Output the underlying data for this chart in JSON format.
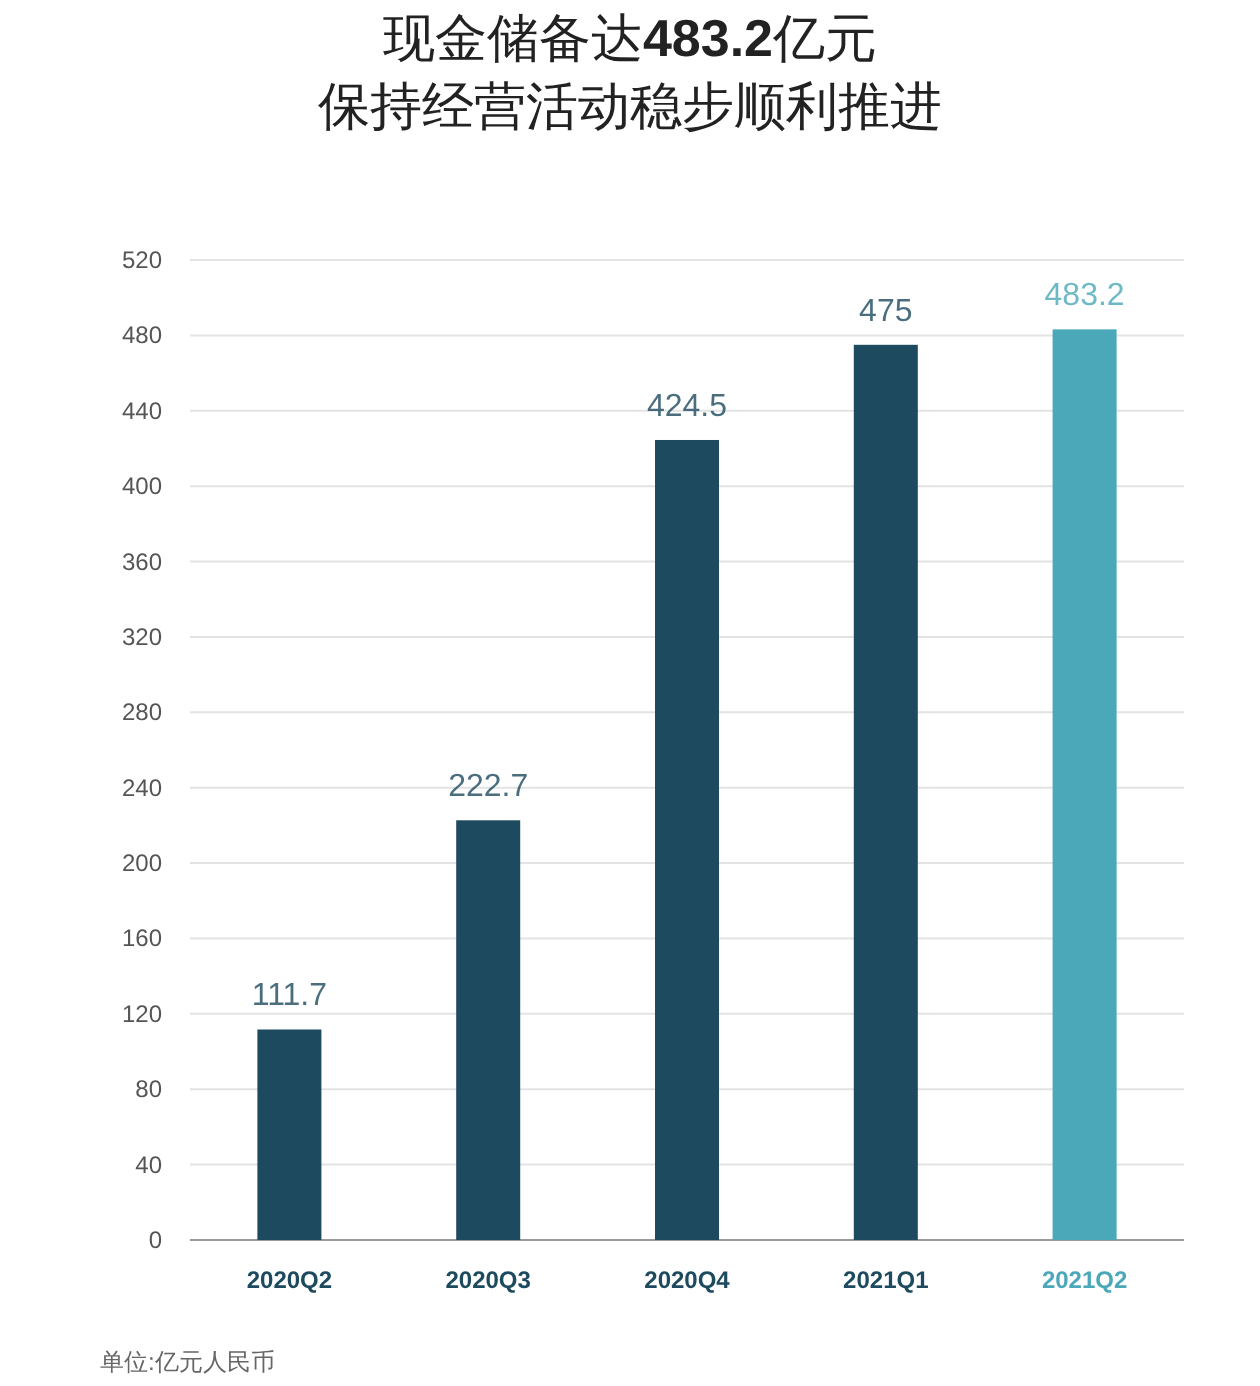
{
  "chart_data": {
    "type": "bar",
    "title": "现金储备达483.2亿元",
    "subtitle": "保持经营活动稳步顺利推进",
    "categories": [
      "2020Q2",
      "2020Q3",
      "2020Q4",
      "2021Q1",
      "2021Q2"
    ],
    "values": [
      111.7,
      222.7,
      424.5,
      475,
      483.2
    ],
    "colors": [
      "#1d4a5f",
      "#1d4a5f",
      "#1d4a5f",
      "#1d4a5f",
      "#4aa8b8"
    ],
    "ylim": [
      0,
      520
    ],
    "yticks": [
      0,
      40,
      80,
      120,
      160,
      200,
      240,
      280,
      320,
      360,
      400,
      440,
      480,
      520
    ],
    "grid": "y",
    "data_labels": true,
    "annotations": [
      "单位:亿元人民币"
    ]
  }
}
